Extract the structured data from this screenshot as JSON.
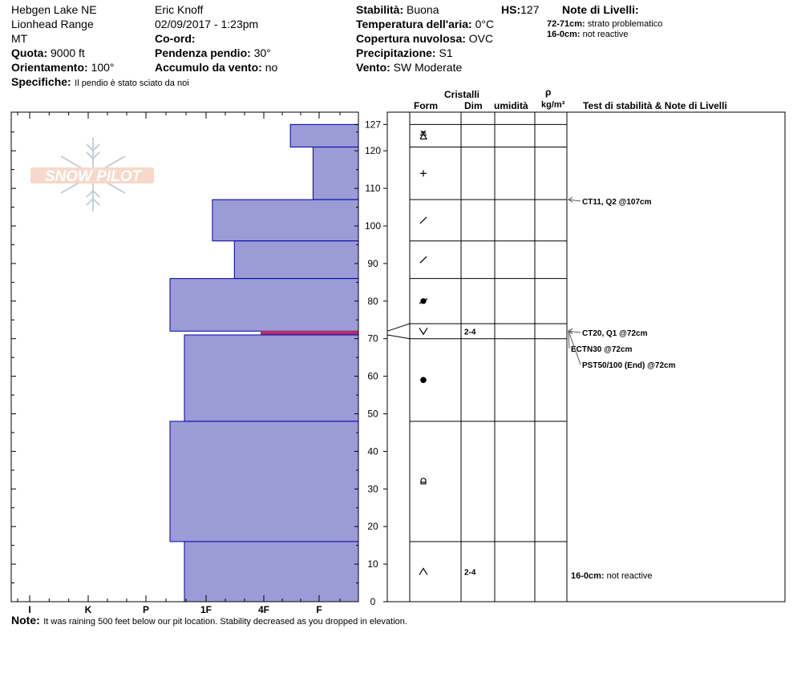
{
  "header": {
    "location": "Hebgen Lake NE",
    "range": "Lionhead Range",
    "state": "MT",
    "elevation_label": "Quota:",
    "elevation_value": "9000 ft",
    "aspect_label": "Orientamento:",
    "aspect_value": "100°",
    "specifics_label": "Specifiche:",
    "specifics_value": "Il pendio è stato sciato da noi",
    "observer": "Eric Knoff",
    "datetime": "02/09/2017 - 1:23pm",
    "coord_label": "Co-ord:",
    "coord_value": "",
    "slope_label": "Pendenza pendio:",
    "slope_value": "30°",
    "wind_loading_label": "Accumulo da vento:",
    "wind_loading_value": "no",
    "stability_label": "Stabilità:",
    "stability_value": "Buona",
    "hs_label": "HS:",
    "hs_value": "127",
    "air_temp_label": "Temperatura dell'aria:",
    "air_temp_value": "0°C",
    "sky_label": "Copertura nuvolosa:",
    "sky_value": "OVC",
    "precip_label": "Precipitazione:",
    "precip_value": "S1",
    "wind_label": "Vento:",
    "wind_value": "SW Moderate",
    "layer_notes_title": "Note di Livelli:",
    "layer_notes": [
      {
        "range": "72-71cm:",
        "text": "strato problematico"
      },
      {
        "range": "16-0cm:",
        "text": "not reactive"
      }
    ]
  },
  "logo": {
    "text": "SNOW PILOT"
  },
  "columns": {
    "crystals": "Cristalli",
    "form": "Form",
    "size": "Dim",
    "moisture": "umidità",
    "density_symbol": "ρ",
    "density_unit": "kg/m³",
    "stability_notes": "Test di stabilità & Note di Livelli"
  },
  "note": {
    "label": "Note:",
    "text": "It was raining 500 feet below our pit location. Stability decreased as you dropped in elevation."
  },
  "colors": {
    "hardness_fill": "#9b9bd7",
    "hardness_stroke": "#0000aa",
    "weak_layer": "#b0306a"
  },
  "chart_data": {
    "type": "bar",
    "orientation": "horizontal",
    "y_axis": {
      "min": 0,
      "max": 127,
      "ticks": [
        0,
        10,
        20,
        30,
        40,
        50,
        60,
        70,
        80,
        90,
        100,
        110,
        120,
        127
      ]
    },
    "x_axis": {
      "categories": [
        "I",
        "K",
        "P",
        "1F",
        "4F",
        "F"
      ]
    },
    "layers": [
      {
        "top": 127,
        "bottom": 121,
        "hardness": 0.52,
        "grain": "decomposing-fragments-icon",
        "size": "",
        "moisture": ""
      },
      {
        "top": 121,
        "bottom": 107,
        "hardness": 0.11,
        "grain": "precipitation-particles-icon",
        "size": "",
        "moisture": ""
      },
      {
        "top": 107,
        "bottom": 96,
        "hardness": 1.89,
        "grain": "faceted-slash-icon",
        "size": "",
        "moisture": ""
      },
      {
        "top": 96,
        "bottom": 86,
        "hardness": 1.51,
        "grain": "faceted-slash-icon",
        "size": "",
        "moisture": ""
      },
      {
        "top": 86,
        "bottom": 72,
        "hardness": 2.6,
        "grain": "melt-freeze-faceted-icon",
        "size": "",
        "moisture": ""
      },
      {
        "top": 72,
        "bottom": 71,
        "hardness": 1.05,
        "grain": "",
        "size": "",
        "moisture": "",
        "weak": true
      },
      {
        "top": 71,
        "bottom": 48,
        "hardness": 2.36,
        "grain": "melt-forms-icon",
        "size": "",
        "moisture": ""
      },
      {
        "top": 48,
        "bottom": 16,
        "hardness": 2.6,
        "grain": "rounding-depth-hoar-icon",
        "size": "",
        "moisture": ""
      },
      {
        "top": 16,
        "bottom": 0,
        "hardness": 2.36,
        "grain": "depth-hoar-icon",
        "size": "2-4",
        "moisture": ""
      }
    ],
    "surface_hoar_layer": {
      "top": 74,
      "bottom": 70,
      "grain": "surface-hoar-icon",
      "size": "2-4",
      "depth": 72
    },
    "stability_tests": [
      {
        "depth": 107,
        "text": "CT11, Q2 @107cm"
      },
      {
        "depth": 72,
        "text": "CT20, Q1 @72cm"
      },
      {
        "depth": 72,
        "text": "ECTN30 @72cm"
      },
      {
        "depth": 72,
        "text": "PST50/100 (End) @72cm"
      }
    ],
    "layer_notes_side": [
      {
        "depth": 16,
        "range": "16-0cm:",
        "text": "not reactive"
      }
    ]
  }
}
